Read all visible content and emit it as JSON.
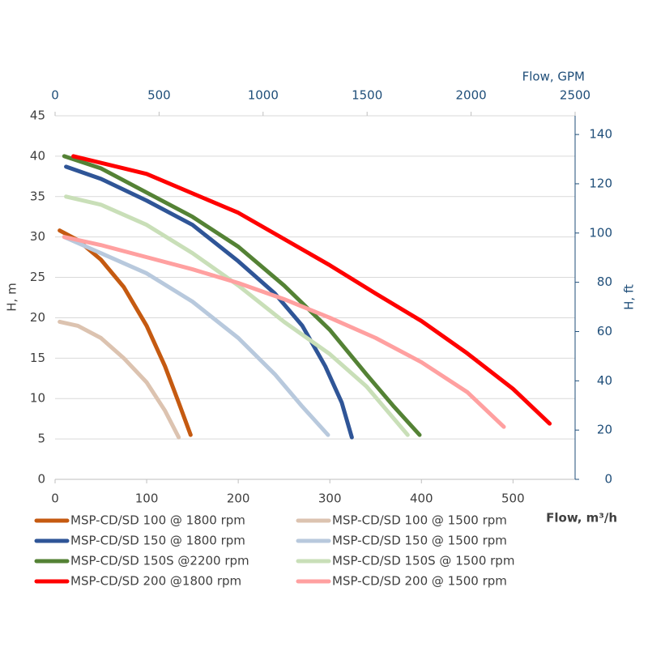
{
  "chart_data": {
    "type": "line",
    "xlabel": "Flow,  m³/h",
    "ylabel": "H, m",
    "x2label": "Flow, GPM",
    "y2label": "H, ft",
    "xlim": [
      0,
      567.8
    ],
    "xticks": [
      0,
      100,
      200,
      300,
      400,
      500
    ],
    "x2lim": [
      0,
      2500
    ],
    "x2ticks": [
      0,
      500,
      1000,
      1500,
      2000,
      2500
    ],
    "ylim": [
      0,
      45
    ],
    "yticks": [
      0,
      5,
      10,
      15,
      20,
      25,
      30,
      35,
      40,
      45
    ],
    "y2lim": [
      0,
      147.6
    ],
    "y2ticks": [
      0,
      20,
      40,
      60,
      80,
      100,
      120,
      140
    ],
    "grid": true,
    "series": [
      {
        "name": "MSP-CD/SD 100 @ 1800 rpm",
        "color": "#c55a11",
        "x": [
          5,
          25,
          50,
          75,
          100,
          120,
          135,
          148
        ],
        "values": [
          30.8,
          29.6,
          27.2,
          23.8,
          19,
          14,
          9.5,
          5.5
        ]
      },
      {
        "name": "MSP-CD/SD 100 @ 1500 rpm",
        "color": "#dcc3b0",
        "x": [
          5,
          25,
          50,
          75,
          100,
          120,
          135
        ],
        "values": [
          19.5,
          19,
          17.5,
          15,
          12,
          8.5,
          5.2
        ]
      },
      {
        "name": "MSP-CD/SD 150 @ 1800 rpm",
        "color": "#2f5597",
        "x": [
          12,
          50,
          100,
          150,
          200,
          240,
          270,
          295,
          313,
          324
        ],
        "values": [
          38.7,
          37.2,
          34.5,
          31.5,
          27,
          23,
          19,
          14,
          9.5,
          5.2
        ]
      },
      {
        "name": "MSP-CD/SD 150 @ 1500 rpm",
        "color": "#b8c9dd",
        "x": [
          10,
          50,
          100,
          150,
          200,
          240,
          270,
          298
        ],
        "values": [
          30,
          28,
          25.5,
          22,
          17.5,
          13,
          9,
          5.5
        ]
      },
      {
        "name": "MSP-CD/SD 150S @2200 rpm",
        "color": "#548235",
        "x": [
          10,
          50,
          100,
          150,
          200,
          250,
          300,
          340,
          370,
          398
        ],
        "values": [
          40,
          38.5,
          35.5,
          32.5,
          28.8,
          24,
          18.5,
          13,
          9,
          5.5
        ]
      },
      {
        "name": "MSP-CD/SD 150S @ 1500 rpm",
        "color": "#c9dfb8",
        "x": [
          12,
          50,
          100,
          150,
          200,
          250,
          300,
          340,
          385
        ],
        "values": [
          35,
          34,
          31.5,
          28,
          24,
          19.5,
          15.5,
          11.5,
          5.5
        ]
      },
      {
        "name": "MSP-CD/SD 200 @1800 rpm",
        "color": "#ff0000",
        "x": [
          20,
          100,
          200,
          300,
          350,
          400,
          450,
          500,
          540
        ],
        "values": [
          40,
          37.8,
          33,
          26.5,
          23,
          19.6,
          15.6,
          11.2,
          6.9
        ]
      },
      {
        "name": "MSP-CD/SD 200 @ 1500 rpm",
        "color": "#ffa0a0",
        "x": [
          10,
          50,
          100,
          150,
          200,
          250,
          300,
          350,
          400,
          450,
          490
        ],
        "values": [
          30,
          29,
          27.5,
          26,
          24.3,
          22.3,
          20,
          17.5,
          14.5,
          10.8,
          6.5
        ]
      }
    ]
  }
}
